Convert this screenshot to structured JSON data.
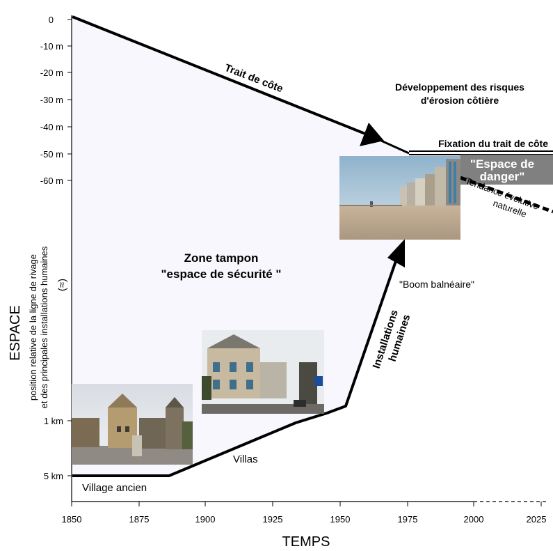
{
  "axes": {
    "y_title": "ESPACE",
    "y_subtitle_line1": "position relative de la ligne de rivage",
    "y_subtitle_line2": "et des principales installations humaines",
    "y_break_symbol": "(≈)",
    "x_title": "TEMPS",
    "y_ticks": [
      "0",
      "-10 m",
      "-20 m",
      "-30 m",
      "-40 m",
      "-50 m",
      "-60 m",
      "1 km",
      "5 km"
    ],
    "x_ticks": [
      "1850",
      "1875",
      "1900",
      "1925",
      "1950",
      "1975",
      "2000",
      "2025"
    ]
  },
  "labels": {
    "trait_de_cote": "Trait de côte",
    "risques_line1": "Développement des risques",
    "risques_line2": "d'érosion côtière",
    "fixation": "Fixation du trait de côte",
    "danger_line1": "\"Espace de",
    "danger_line2": "danger\"",
    "tendance_line1": "Tendance évolutive",
    "tendance_line2": "naturelle",
    "zone_line1": "Zone tampon",
    "zone_line2": "\"espace de sécurité \"",
    "boom": "\"Boom balnéaire\"",
    "installations_line1": "Installations",
    "installations_line2": "humaines",
    "villas": "Villas",
    "village": "Village ancien"
  },
  "photos": [
    {
      "name": "photo-old-village",
      "subject": "old village church and houses"
    },
    {
      "name": "photo-villas",
      "subject": "seaside villas along a street"
    },
    {
      "name": "photo-seafront",
      "subject": "beach with seafront apartment buildings"
    }
  ],
  "colors": {
    "zone_fill": "#f8f7fd",
    "danger_fill": "#808080",
    "line": "#000000"
  }
}
